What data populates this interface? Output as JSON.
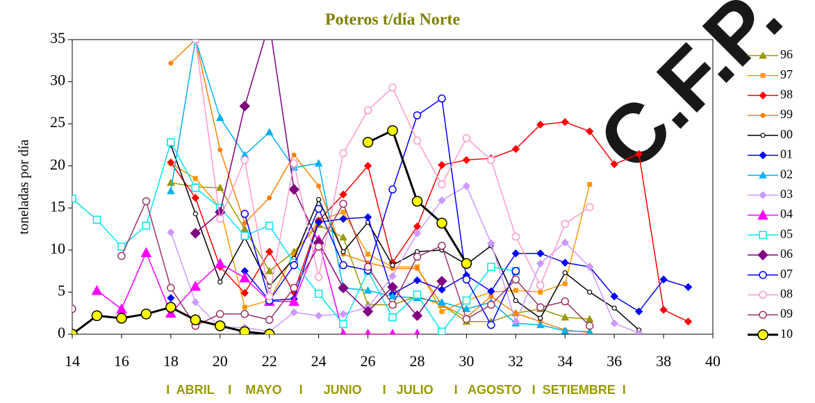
{
  "chart_data": {
    "type": "line",
    "title": "Poteros t/día Norte",
    "y_label": "toneladas por día",
    "month_labels": "I  ABRIL    I    MAYO     I      JUNIO      I   JULIO      I   AGOSTO   I  SETIEMBRE  I",
    "watermark": "C.F.P.",
    "xlim": [
      14,
      40
    ],
    "xticks": [
      14,
      16,
      18,
      20,
      22,
      24,
      26,
      28,
      30,
      32,
      34,
      36,
      38,
      40
    ],
    "ylim": [
      0,
      35
    ],
    "yticks": [
      0,
      5,
      10,
      15,
      20,
      25,
      30,
      35
    ],
    "grid": false,
    "legend": "right",
    "x": [
      14,
      15,
      16,
      17,
      18,
      19,
      20,
      21,
      22,
      23,
      24,
      25,
      26,
      27,
      28,
      29,
      30,
      31,
      32,
      33,
      34,
      35,
      36,
      37,
      38,
      39
    ],
    "series": [
      {
        "name": "96",
        "color": "#999900",
        "marker": "triangle",
        "values": [
          null,
          null,
          null,
          null,
          18,
          17.5,
          17.4,
          12.5,
          7.5,
          9.8,
          13,
          11.5,
          3.5,
          3.5,
          4.5,
          3.5,
          1.5,
          1.5,
          2.5,
          3,
          2,
          1.8,
          null,
          null,
          null,
          null
        ]
      },
      {
        "name": "97",
        "color": "#ff9900",
        "marker": "square",
        "values": [
          null,
          null,
          null,
          null,
          20.3,
          18.5,
          15,
          3.2,
          4,
          9.5,
          13.5,
          14.5,
          9.5,
          8,
          8,
          2.7,
          4,
          5,
          5.2,
          5,
          6,
          17.8,
          null,
          null,
          null,
          null
        ]
      },
      {
        "name": "98",
        "color": "#ff0000",
        "marker": "diamond",
        "values": [
          null,
          null,
          null,
          null,
          20.4,
          16.2,
          8,
          4.9,
          9.8,
          5,
          13.5,
          16.6,
          20,
          8.5,
          12.8,
          20.1,
          20.7,
          20.9,
          22,
          24.9,
          25.2,
          24.1,
          20.2,
          21.4,
          2.9,
          1.5
        ]
      },
      {
        "name": "99",
        "color": "#ff8000",
        "marker": "circle",
        "values": [
          null,
          null,
          null,
          null,
          32.2,
          35,
          21.9,
          13.2,
          16.2,
          21.3,
          17.6,
          9.5,
          8.5,
          7.8,
          7.8,
          3.5,
          2,
          4.5,
          2.5,
          1.5,
          0.5,
          0.2,
          null,
          null,
          null,
          null
        ]
      },
      {
        "name": "00",
        "color": "#000000",
        "marker": "open-circle-small",
        "values": [
          null,
          null,
          null,
          null,
          22.5,
          14.3,
          6.2,
          11.5,
          5.7,
          9,
          16,
          9.8,
          13.3,
          8.2,
          9.8,
          10,
          8.3,
          10.5,
          4,
          1.9,
          7.3,
          5,
          3.1,
          0.5,
          null,
          null
        ]
      },
      {
        "name": "01",
        "color": "#0000ff",
        "marker": "diamond",
        "values": [
          null,
          null,
          null,
          null,
          4.3,
          null,
          null,
          7.5,
          4,
          4.2,
          13.3,
          13.7,
          13.9,
          4.8,
          6.4,
          5.3,
          7,
          5.1,
          9.6,
          9.6,
          8.5,
          8,
          4.5,
          2.7,
          6.5,
          5.6
        ]
      },
      {
        "name": "02",
        "color": "#00b0f0",
        "marker": "triangle",
        "values": [
          null,
          null,
          null,
          null,
          17,
          35,
          25.7,
          21.3,
          24,
          19.8,
          20.3,
          5.5,
          5.2,
          4.5,
          4.3,
          3.8,
          3,
          3.8,
          1.3,
          1.1,
          0.4,
          0.3,
          null,
          null,
          null,
          null
        ]
      },
      {
        "name": "03",
        "color": "#cc99ff",
        "marker": "diamond",
        "values": [
          null,
          null,
          null,
          null,
          12.1,
          3.8,
          0.8,
          0.8,
          0.3,
          2.6,
          2.2,
          2.4,
          3.2,
          6.9,
          12,
          15.9,
          17.6,
          10.8,
          1.5,
          8.4,
          10.9,
          8,
          1.3,
          0.1,
          null,
          null
        ]
      },
      {
        "name": "04",
        "color": "#ff00ff",
        "marker": "triangle-big",
        "values": [
          null,
          5.2,
          3,
          9.7,
          2.5,
          5.7,
          8.4,
          6.7,
          3.9,
          3.9,
          11.2,
          0,
          0,
          0,
          0,
          null,
          null,
          null,
          null,
          null,
          null,
          null,
          null,
          null,
          null,
          null
        ]
      },
      {
        "name": "05",
        "color": "#00e5ee",
        "marker": "open-square",
        "values": [
          16.1,
          13.6,
          10.4,
          12.9,
          22.8,
          17.4,
          15,
          11.7,
          12.9,
          8.5,
          4.8,
          1.2,
          7.5,
          2,
          4.7,
          0.3,
          4,
          8,
          7.5,
          null,
          null,
          null,
          null,
          null,
          null,
          null
        ]
      },
      {
        "name": "06",
        "color": "#800080",
        "marker": "diamond-big",
        "values": [
          null,
          null,
          null,
          null,
          null,
          12,
          14.5,
          27.1,
          37,
          17.2,
          10.9,
          5.5,
          2.7,
          5.6,
          2.2,
          6.3,
          null,
          null,
          null,
          null,
          null,
          null,
          null,
          null,
          null,
          null
        ]
      },
      {
        "name": "07",
        "color": "#0000ff",
        "marker": "open-circle",
        "values": [
          null,
          null,
          null,
          null,
          null,
          null,
          null,
          14.3,
          4,
          8.2,
          14.9,
          8.2,
          7.6,
          17.2,
          26,
          28,
          6.5,
          1.1,
          7.5,
          null,
          null,
          null,
          null,
          null,
          null,
          null
        ]
      },
      {
        "name": "08",
        "color": "#ff99cc",
        "marker": "open-circle",
        "values": [
          null,
          null,
          null,
          null,
          null,
          35,
          13.7,
          20.7,
          4.5,
          20.3,
          6.8,
          21.5,
          26.6,
          29.3,
          23,
          17.8,
          23.3,
          20.7,
          11.6,
          5.8,
          13.1,
          15.1,
          null,
          null,
          null,
          null
        ]
      },
      {
        "name": "09",
        "color": "#993366",
        "marker": "open-circle",
        "values": [
          3,
          null,
          9.3,
          15.8,
          5.5,
          1,
          2.4,
          2.4,
          1.7,
          5.5,
          10.4,
          15.5,
          8,
          3.5,
          9.2,
          10.5,
          1.8,
          3.5,
          6.5,
          3.2,
          3.9,
          1,
          null,
          null,
          null,
          null
        ]
      },
      {
        "name": "10",
        "color": "#000000",
        "marker": "yellow-circle",
        "values": [
          0,
          2.2,
          1.9,
          2.4,
          3.2,
          1.7,
          1,
          0.3,
          0,
          null,
          null,
          null,
          22.8,
          24.2,
          15.8,
          13.2,
          8.4,
          null,
          null,
          null,
          null,
          null,
          null,
          null,
          null,
          null
        ]
      }
    ]
  }
}
